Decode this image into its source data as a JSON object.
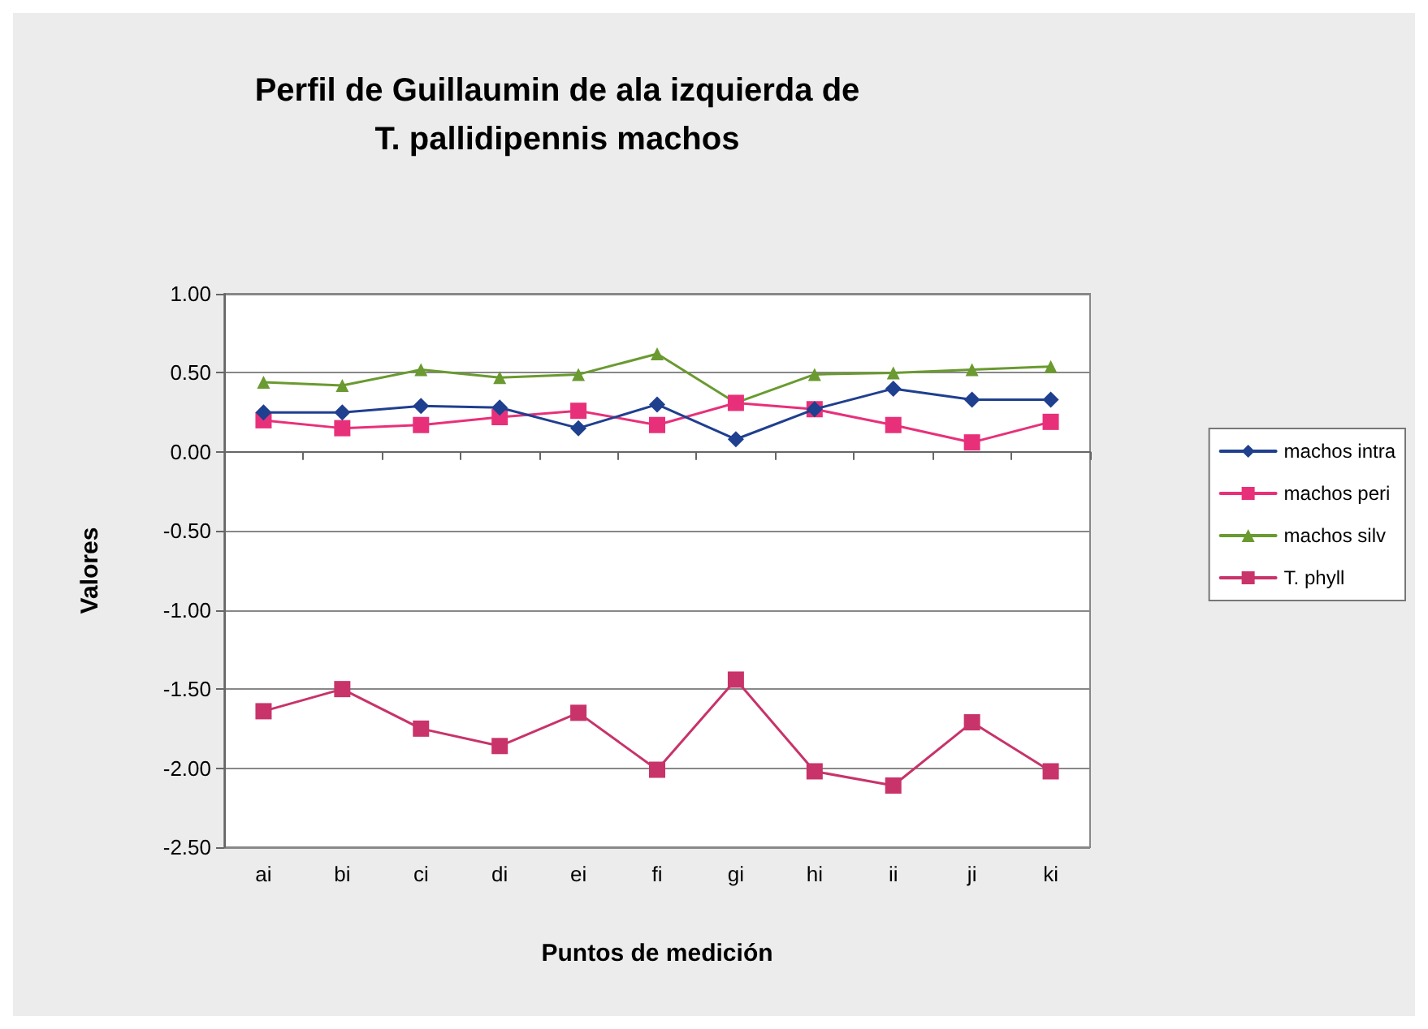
{
  "chart_data": {
    "type": "line",
    "title": "Perfil de Guillaumin de ala izquierda de\nT. pallidipennis machos",
    "xlabel": "Puntos de medición",
    "ylabel": "Valores",
    "categories": [
      "ai",
      "bi",
      "ci",
      "di",
      "ei",
      "fi",
      "gi",
      "hi",
      "ii",
      "ji",
      "ki"
    ],
    "series": [
      {
        "name": "machos intra",
        "color": "#1f3f8f",
        "marker": "diamond",
        "values": [
          0.25,
          0.25,
          0.29,
          0.28,
          0.15,
          0.3,
          0.08,
          0.27,
          0.4,
          0.33,
          0.33
        ]
      },
      {
        "name": "machos peri",
        "color": "#e8307a",
        "marker": "square",
        "values": [
          0.2,
          0.15,
          0.17,
          0.22,
          0.26,
          0.17,
          0.31,
          0.27,
          0.17,
          0.06,
          0.19
        ]
      },
      {
        "name": "machos silv",
        "color": "#6a9a30",
        "marker": "triangle",
        "values": [
          0.44,
          0.42,
          0.52,
          0.47,
          0.49,
          0.62,
          0.31,
          0.49,
          0.5,
          0.52,
          0.54
        ]
      },
      {
        "name": "T. phyll",
        "color": "#c8336a",
        "marker": "square",
        "values": [
          -1.64,
          -1.5,
          -1.75,
          -1.86,
          -1.65,
          -2.01,
          -1.44,
          -2.02,
          -2.11,
          -1.71,
          -2.02
        ]
      }
    ],
    "ylim": [
      -2.5,
      1.0
    ],
    "yticks": [
      {
        "value": -2.5,
        "label": "-2.50"
      },
      {
        "value": -2.0,
        "label": "-2.00"
      },
      {
        "value": -1.5,
        "label": "-1.50"
      },
      {
        "value": -1.0,
        "label": "-1.00"
      },
      {
        "value": -0.5,
        "label": "-0.50"
      },
      {
        "value": 0,
        "label": "0.00"
      },
      {
        "value": 0.5,
        "label": "0.50"
      },
      {
        "value": 1.0,
        "label": "1.00"
      }
    ],
    "grid": "y",
    "legend": "right",
    "line_style": "solid"
  }
}
